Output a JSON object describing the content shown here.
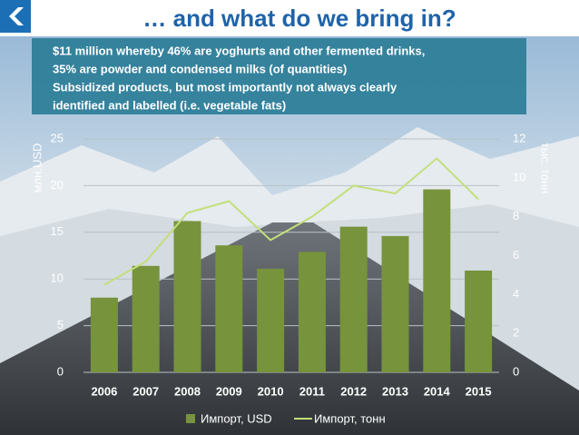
{
  "chart_data": {
    "type": "bar-line",
    "title": "… and what do we bring in?",
    "text_lines": [
      "$11 million whereby 46%  are yoghurts and other fermented drinks,",
      "35% are powder and condensed milks (of quantities)",
      "Subsidized products, but most importantly not always clearly",
      "identified and labelled (i.e. vegetable fats)"
    ],
    "categories": [
      "2006",
      "2007",
      "2008",
      "2009",
      "2010",
      "2011",
      "2012",
      "2013",
      "2014",
      "2015"
    ],
    "series": [
      {
        "name": "Импорт, USD",
        "type": "bar",
        "color": "#77933c",
        "axis": "y",
        "values": [
          8.0,
          11.4,
          16.2,
          13.6,
          11.1,
          12.9,
          15.6,
          14.6,
          19.6,
          10.9
        ]
      },
      {
        "name": "Импорт, тонн",
        "type": "line",
        "color": "#c3df7a",
        "axis": "y2",
        "values": [
          4.5,
          5.7,
          8.2,
          8.8,
          6.8,
          8.0,
          9.6,
          9.2,
          11.0,
          8.9
        ]
      }
    ],
    "ylabel": "млн.USD",
    "y2label": "тыс. тонн",
    "ylim": [
      0,
      25
    ],
    "yticks": [
      0,
      5,
      10,
      15,
      20,
      25
    ],
    "y2lim": [
      0,
      12
    ],
    "y2ticks": [
      0,
      2,
      4,
      6,
      8,
      10,
      12
    ],
    "grid": true
  }
}
